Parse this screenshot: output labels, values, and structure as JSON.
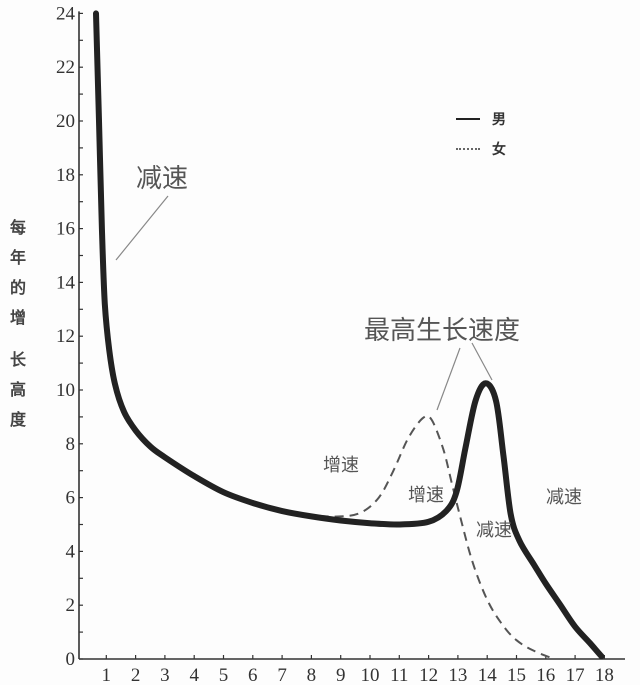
{
  "chart_data": {
    "type": "line",
    "title": "",
    "xlabel": "",
    "ylabel": "每年的增长高度",
    "ylim": [
      0,
      24
    ],
    "xlim": [
      0,
      18
    ],
    "grid": false,
    "legend_position": "upper right",
    "yticks": [
      0,
      2,
      4,
      6,
      8,
      10,
      12,
      14,
      16,
      18,
      20,
      22,
      24
    ],
    "xticks": [
      1,
      2,
      3,
      4,
      5,
      6,
      7,
      8,
      9,
      10,
      11,
      12,
      13,
      14,
      15,
      16,
      17,
      18
    ],
    "series": [
      {
        "name": "男",
        "style": "solid",
        "points": [
          [
            0.65,
            24
          ],
          [
            0.75,
            20
          ],
          [
            0.85,
            16
          ],
          [
            0.95,
            13.2
          ],
          [
            1.1,
            11.5
          ],
          [
            1.3,
            10.2
          ],
          [
            1.6,
            9.2
          ],
          [
            2,
            8.5
          ],
          [
            2.5,
            7.9
          ],
          [
            3,
            7.5
          ],
          [
            4,
            6.8
          ],
          [
            5,
            6.2
          ],
          [
            6,
            5.8
          ],
          [
            7,
            5.5
          ],
          [
            8,
            5.3
          ],
          [
            9,
            5.15
          ],
          [
            10,
            5.05
          ],
          [
            11,
            5.0
          ],
          [
            12,
            5.1
          ],
          [
            12.6,
            5.5
          ],
          [
            12.95,
            6.2
          ],
          [
            13.25,
            7.8
          ],
          [
            13.6,
            9.6
          ],
          [
            13.95,
            10.25
          ],
          [
            14.3,
            9.6
          ],
          [
            14.55,
            7.6
          ],
          [
            14.8,
            5.4
          ],
          [
            15.1,
            4.4
          ],
          [
            15.6,
            3.5
          ],
          [
            16,
            2.8
          ],
          [
            16.5,
            2.0
          ],
          [
            17,
            1.2
          ],
          [
            17.5,
            0.6
          ],
          [
            17.9,
            0.1
          ]
        ]
      },
      {
        "name": "女",
        "style": "dashed",
        "points": [
          [
            0.65,
            24
          ],
          [
            0.75,
            20
          ],
          [
            0.85,
            16
          ],
          [
            0.95,
            13.2
          ],
          [
            1.1,
            11.5
          ],
          [
            1.3,
            10.2
          ],
          [
            1.6,
            9.2
          ],
          [
            2,
            8.5
          ],
          [
            2.5,
            7.9
          ],
          [
            3,
            7.5
          ],
          [
            4,
            6.8
          ],
          [
            5,
            6.25
          ],
          [
            6,
            5.85
          ],
          [
            7,
            5.55
          ],
          [
            8,
            5.35
          ],
          [
            9,
            5.3
          ],
          [
            9.7,
            5.45
          ],
          [
            10.3,
            6.0
          ],
          [
            10.8,
            7.0
          ],
          [
            11.3,
            8.2
          ],
          [
            11.8,
            8.95
          ],
          [
            12.1,
            8.9
          ],
          [
            12.5,
            7.8
          ],
          [
            12.8,
            6.5
          ],
          [
            13.1,
            5.2
          ],
          [
            13.5,
            3.6
          ],
          [
            14,
            2.2
          ],
          [
            14.5,
            1.3
          ],
          [
            15,
            0.7
          ],
          [
            15.6,
            0.3
          ],
          [
            16.3,
            0.0
          ]
        ]
      }
    ],
    "annotations": [
      {
        "text": "减速",
        "x": 1.2,
        "y": 15,
        "note": "early deceleration"
      },
      {
        "text": "最高生长速度",
        "x": 13.5,
        "y": 12.2,
        "note": "peak height velocity, pointers to both peaks"
      },
      {
        "text": "增速",
        "x": 9.6,
        "y": 7.2,
        "note": "female acceleration"
      },
      {
        "text": "增速",
        "x": 12.2,
        "y": 6.2,
        "note": "male acceleration"
      },
      {
        "text": "减速",
        "x": 13.7,
        "y": 4.7,
        "note": "female deceleration"
      },
      {
        "text": "减速",
        "x": 16.2,
        "y": 6.1,
        "note": "male deceleration"
      }
    ]
  },
  "labels": {
    "ylabel_chars": [
      "每",
      "年",
      "的",
      "增",
      "长",
      "高",
      "度"
    ],
    "legend": [
      {
        "label": "男",
        "style": "solid"
      },
      {
        "label": "女",
        "style": "dashed"
      }
    ],
    "annot_decel_early": "减速",
    "annot_peak": "最高生长速度",
    "annot_accel_female": "增速",
    "annot_accel_male": "增速",
    "annot_decel_female": "减速",
    "annot_decel_male": "减速"
  },
  "colors": {
    "male_line": "#222222",
    "female_line": "#555555",
    "axis": "#333333",
    "pointer": "#777777"
  }
}
